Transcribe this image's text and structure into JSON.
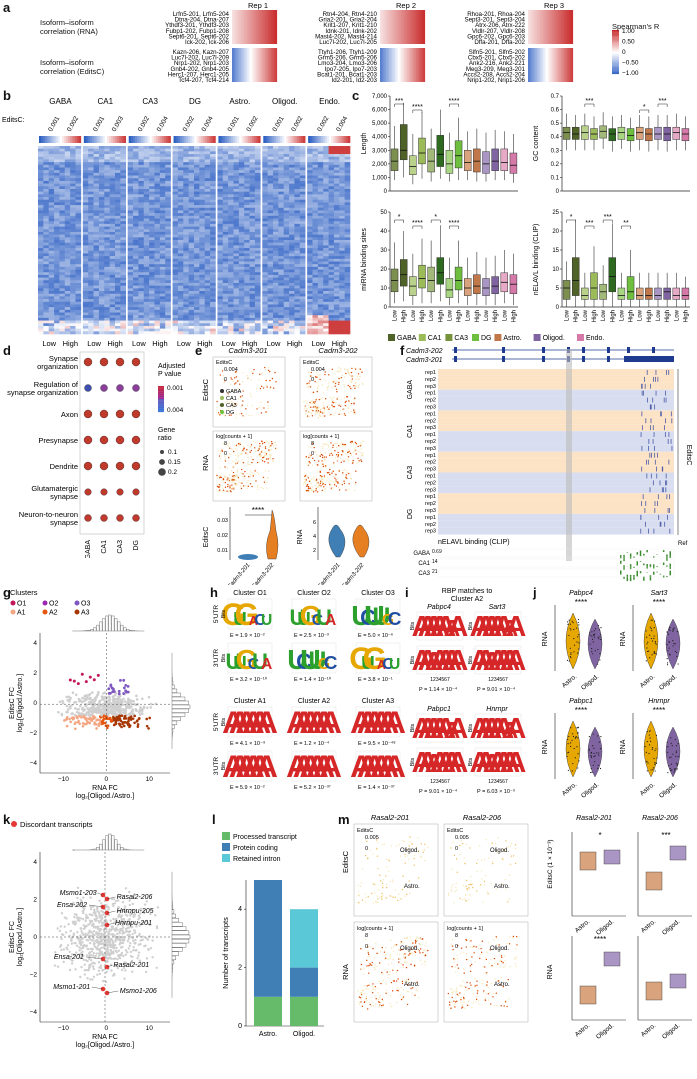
{
  "panel_a": {
    "label": "a",
    "reps": [
      "Rep 1",
      "Rep 2",
      "Rep 3"
    ],
    "row_rna": "Isoform–isoform\ncorrelation (RNA)",
    "row_editsc": "Isoform–isoform\ncorrelation (EditsC)",
    "rna_lists": [
      [
        "Lrfn5-201, Lrfn5-204",
        "Dtna-204, Dtna-207",
        "Ythdf3-201, Ythdf3-203",
        "Fubp1-202, Fubp1-208",
        "Sept6-201, Sept6-202",
        "Ick-202, Ick-206"
      ],
      [
        "Rtn4-204, Rtn4-210",
        "Gria2-201, Gria2-204",
        "Krit1-207, Krit1-210",
        "Idnk-201, Idnk-202",
        "Mast4-202, Mast4-214",
        "Luc7l-202, Luc7l-205"
      ],
      [
        "Rhoa-201, Rhoa-204",
        "Sept3-201, Sept3-204",
        "Atrx-206, Atrx-222",
        "Vldlr-207, Vldlr-208",
        "Gpc6-202, Gpc6-203",
        "Dffa-201, Dffa-202"
      ]
    ],
    "editsc_lists": [
      [
        "Kazn-206, Kazn-207",
        "Luc7l-202, Luc7l-209",
        "Nrp1-202, Nrp1-203",
        "Gnb4-202, Gnb4-205",
        "Herc1-207, Herc1-205",
        "Tcf4-207, Tcf4-214"
      ],
      [
        "Ttyh1-206, Ttyh1-209",
        "Grm5-206, Grm5-206",
        "Lmo3-204, Lmo3-206",
        "Ipo7-205, Ipo7-203",
        "Bcat1-201, Bcat1-203",
        "Id2-201, Id2-203"
      ],
      [
        "Slfn5-201, Slfn5-202",
        "Cbx5-201, Cbx5-202",
        "Ank2-216, Ank2-221",
        "Meg3-209, Meg3-201",
        "Accs2-208, Accs2-204",
        "Nrip1-202, Nrip1-206"
      ]
    ],
    "cbar_title": "Spearman's R",
    "cbar_ticks": [
      "1.00",
      "0.50",
      "0",
      "−0.50",
      "−1.00"
    ]
  },
  "panel_b": {
    "label": "b",
    "groups": [
      "GABA",
      "CA1",
      "CA3",
      "DG",
      "Astro.",
      "Oligod.",
      "Endo."
    ],
    "editsc_label": "EditsC:",
    "editsc_vals": [
      "0.001",
      "0.002",
      "0.001",
      "0.003",
      "0.002",
      "0.004",
      "0.002",
      "0.004",
      "0.001",
      "0.002",
      "0.001",
      "0.002",
      "0.002",
      "0.004"
    ],
    "low": "Low",
    "high": "High"
  },
  "panel_c": {
    "label": "c",
    "plots": [
      {
        "ylabel": "Length",
        "yticks": [
          "0",
          "1,000",
          "2,000",
          "3,000",
          "4,000",
          "5,000",
          "6,000",
          "7,000"
        ]
      },
      {
        "ylabel": "GC content",
        "yticks": [
          "0",
          "0.1",
          "0.2",
          "0.3",
          "0.4",
          "0.5",
          "0.6",
          "0.7"
        ]
      },
      {
        "ylabel": "miRNA binding sites",
        "yticks": [
          "0",
          "10",
          "20",
          "30",
          "40",
          "50"
        ]
      },
      {
        "ylabel": "nELAVL binding (CLIP)",
        "yticks": [
          "0",
          "5",
          "10",
          "15",
          "20",
          "25"
        ]
      }
    ],
    "sig_left_top": [
      "***",
      "****",
      "****"
    ],
    "sig_right_top": [
      "***",
      "*",
      "***"
    ],
    "sig_left_bottom": [
      "*",
      "****",
      "*",
      "****"
    ],
    "sig_right_bottom": [
      "*",
      "***",
      "***",
      "**"
    ],
    "xlab": [
      "Low",
      "High",
      "Low",
      "High",
      "Low",
      "High",
      "Low",
      "High",
      "Low",
      "High",
      "Low",
      "High",
      "Low",
      "High"
    ],
    "legend": [
      {
        "name": "GABA",
        "color": "#4f6228"
      },
      {
        "name": "CA1",
        "color": "#9bbb59"
      },
      {
        "name": "CA3",
        "color": "#76923c"
      },
      {
        "name": "DG",
        "color": "#6fbf3f"
      },
      {
        "name": "Astro.",
        "color": "#c0784a"
      },
      {
        "name": "Oligod.",
        "color": "#8064a2"
      },
      {
        "name": "Endo.",
        "color": "#d57aa8"
      }
    ]
  },
  "panel_d": {
    "label": "d",
    "terms": [
      "Synapse\norganization",
      "Regulation of\nsynapse organization",
      "Axon",
      "Presynapse",
      "Dendrite",
      "Glutamatergic\nsynapse",
      "Neuron-to-neuron\nsynapse"
    ],
    "cols": [
      "GABA",
      "CA1",
      "CA3",
      "DG"
    ],
    "legend_title1": "Adjusted\nP value",
    "legend_p": [
      "0.001",
      "0.004"
    ],
    "legend_title2": "Gene\nratio",
    "legend_ratio": [
      "0.1",
      "0.15",
      "0.2"
    ]
  },
  "panel_e": {
    "label": "e",
    "iso1": "Cadm3-201",
    "iso2": "Cadm3-202",
    "editsc_row": "EditsC",
    "rna_row": "RNA",
    "scale_editsc": [
      "EditsC",
      "0.004",
      "0"
    ],
    "scale_rna": [
      "log[counts + 1]",
      "8",
      "0"
    ],
    "clusters": [
      "GABA",
      "CA1",
      "CA3",
      "DG"
    ],
    "violin_left_label": "EditsC",
    "violin_left_sig": "****",
    "violin_left_ticks": [
      "0.01",
      "0.02",
      "0.03"
    ],
    "violin_right_label": "RNA",
    "violin_right_ticks": [
      "2",
      "4",
      "6"
    ],
    "violin_x": [
      "Cadm3-201",
      "Cadm3-202"
    ]
  },
  "panel_f": {
    "label": "f",
    "iso1": "Cadm3-202",
    "iso2": "Cadm3-201",
    "groups": [
      "GABA",
      "CA1",
      "CA3",
      "DG"
    ],
    "reps": [
      "rep1",
      "rep2",
      "rep3"
    ],
    "side_label": "EditsC",
    "clip_label": "nELAVL binding (CLIP)",
    "clip_rows": [
      "GABA",
      "CA1",
      "CA3"
    ],
    "clip_vals": [
      "0.69",
      "14",
      "21"
    ],
    "ref": "Ref"
  },
  "panel_g": {
    "label": "g",
    "legend_title": "Clusters",
    "clusters": [
      {
        "name": "O1",
        "color": "#c2185b"
      },
      {
        "name": "O2",
        "color": "#9c27b0"
      },
      {
        "name": "O3",
        "color": "#7e57c2"
      },
      {
        "name": "A1",
        "color": "#f4a582"
      },
      {
        "name": "A2",
        "color": "#e6550d"
      },
      {
        "name": "A3",
        "color": "#a63603"
      }
    ],
    "xlabel": "RNA FC\nlog₂[Oligod./Astro.]",
    "ylabel": "EditsC FC\nlog₂[Oligod./Astro.]",
    "xticks": [
      "−10",
      "0",
      "10"
    ],
    "yticks": [
      "4",
      "2",
      "0",
      "−2",
      "−4"
    ]
  },
  "panel_h": {
    "label": "h",
    "clusters": [
      {
        "name": "Cluster O1",
        "e5": "E = 1.9 × 10⁻²",
        "e3": "E = 3.2 × 10⁻¹⁰"
      },
      {
        "name": "Cluster O2",
        "e5": "E = 2.5 × 10⁻³",
        "e3": "E = 1.4 × 10⁻¹⁰"
      },
      {
        "name": "Cluster O3",
        "e5": "E = 5.0 × 10⁻⁶",
        "e3": "E = 3.8 × 10⁻¹"
      },
      {
        "name": "Cluster A1",
        "e5": "E = 4.1 × 10⁻⁹",
        "e3": "E = 5.9 × 10⁻²"
      },
      {
        "name": "Cluster A2",
        "e5": "E = 1.2 × 10⁻⁴",
        "e3": "E = 5.2 × 10⁻³⁷"
      },
      {
        "name": "Cluster A3",
        "e5": "E = 9.5 × 10⁻⁴⁸",
        "e3": "E = 1.4 × 10⁻³⁷"
      }
    ],
    "utr5": "5′UTR",
    "utr3": "3′UTR",
    "bits": "Bits"
  },
  "panel_i": {
    "label": "i",
    "title": "RBP matches to\nCluster A2",
    "rbps": [
      {
        "name": "Pabpc4",
        "p": "P = 1.14 × 10⁻⁴"
      },
      {
        "name": "Sart3",
        "p": "P = 9.01 × 10⁻⁴"
      },
      {
        "name": "Pabpc1",
        "p": "P = 9.01 × 10⁻⁴"
      },
      {
        "name": "Hnrnpr",
        "p": "P = 6.03 × 10⁻³"
      }
    ],
    "bits": "Bits",
    "xticks": "1234567"
  },
  "panel_j": {
    "label": "j",
    "genes": [
      "Pabpc4",
      "Sart3",
      "Pabpc1",
      "Hnrnpr"
    ],
    "sig": "****",
    "ylabel": "RNA",
    "x": [
      "Astro.",
      "Oligod."
    ]
  },
  "panel_k": {
    "label": "k",
    "legend": "Discordant transcripts",
    "points": [
      "Msmo1-203",
      "Ensa-202",
      "Rasal2-206",
      "Hnrnpu-205",
      "Hnrnpu-201",
      "Ensa-201",
      "Rasal2-201",
      "Msmo1-201",
      "Msmo1-206"
    ],
    "xlabel": "RNA FC\nlog₂[Oligod./Astro.]",
    "ylabel": "EditsC FC\nlog₂[Oligod./Astro.]",
    "xticks": [
      "−10",
      "0",
      "10"
    ],
    "yticks": [
      "4",
      "2",
      "0",
      "−2",
      "−4"
    ]
  },
  "panel_l": {
    "label": "l",
    "legend": [
      {
        "name": "Processed transcript",
        "color": "#66bb6a"
      },
      {
        "name": "Protein coding",
        "color": "#3f7fb5"
      },
      {
        "name": "Retained intron",
        "color": "#5bc8d8"
      }
    ],
    "ylabel": "Number of transcripts",
    "yticks": [
      "0",
      "2",
      "4"
    ],
    "x": [
      "Astro.",
      "Oligod."
    ]
  },
  "chart_data": [
    {
      "type": "bar",
      "title": "",
      "categories": [
        "Astro.",
        "Oligod."
      ],
      "series": [
        {
          "name": "Processed transcript",
          "values": [
            1,
            1
          ]
        },
        {
          "name": "Protein coding",
          "values": [
            4,
            1
          ]
        },
        {
          "name": "Retained intron",
          "values": [
            0,
            2
          ]
        }
      ],
      "ylabel": "Number of transcripts",
      "ylim": [
        0,
        5
      ]
    }
  ],
  "panel_m": {
    "label": "m",
    "iso1": "Rasal2-201",
    "iso2": "Rasal2-206",
    "editsc_row": "EditsC",
    "rna_row": "RNA",
    "scale_editsc": [
      "EditsC",
      "0.005",
      "0"
    ],
    "scale_rna": [
      "log[counts + 1]",
      "8",
      "0"
    ],
    "oligod": "Oligod.",
    "astro": "Astro.",
    "box_ylabel_top": "EditsC (1 × 10⁻³)",
    "box_ylabel_bottom": "RNA",
    "box_sig": [
      "*",
      "***",
      "****",
      ""
    ],
    "box_x": [
      "Astro.",
      "Oligod."
    ]
  }
}
